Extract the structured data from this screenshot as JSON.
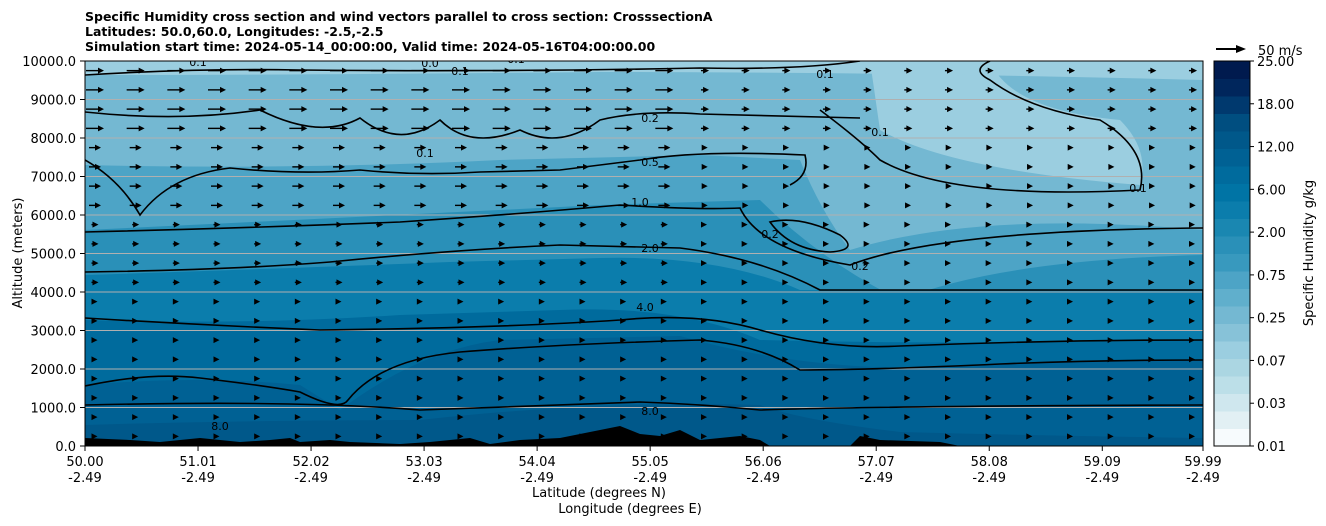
{
  "titles": {
    "line1": "Specific Humidity cross section and wind vectors parallel to cross section: CrosssectionA",
    "line2": "Latitudes: 50.0,60.0, Longitudes: -2.5,-2.5",
    "line3": "Simulation start time: 2024-05-14_00:00:00, Valid time: 2024-05-16T04:00:00.00"
  },
  "chart_data": {
    "type": "heatmap",
    "title": "Specific Humidity cross section and wind vectors parallel to cross section: CrosssectionA",
    "ylabel": "Altitude (meters)",
    "xlabel_lat": "Latitude (degrees N)",
    "xlabel_lon": "Longitude (degrees E)",
    "ylim": [
      0,
      10000
    ],
    "xlim": [
      50.0,
      59.99
    ],
    "y_ticks": [
      "0.0",
      "1000.0",
      "2000.0",
      "3000.0",
      "4000.0",
      "5000.0",
      "6000.0",
      "7000.0",
      "8000.0",
      "9000.0",
      "10000.0"
    ],
    "x_ticks": [
      {
        "lat": "50.00",
        "lon": "-2.49"
      },
      {
        "lat": "51.01",
        "lon": "-2.49"
      },
      {
        "lat": "52.02",
        "lon": "-2.49"
      },
      {
        "lat": "53.03",
        "lon": "-2.49"
      },
      {
        "lat": "54.04",
        "lon": "-2.49"
      },
      {
        "lat": "55.05",
        "lon": "-2.49"
      },
      {
        "lat": "56.06",
        "lon": "-2.49"
      },
      {
        "lat": "57.07",
        "lon": "-2.49"
      },
      {
        "lat": "58.08",
        "lon": "-2.49"
      },
      {
        "lat": "59.09",
        "lon": "-2.49"
      },
      {
        "lat": "59.99",
        "lon": "-2.49"
      }
    ],
    "grid": "horizontal",
    "colorbar": {
      "label": "Specific Humidity g/kg",
      "levels": [
        0.01,
        0.02,
        0.03,
        0.05,
        0.07,
        0.1,
        0.15,
        0.25,
        0.35,
        0.5,
        0.75,
        1.0,
        1.5,
        2.0,
        3.0,
        4.0,
        6.0,
        8.0,
        12.0,
        15.0,
        18.0,
        22.0,
        25.0
      ],
      "tick_labels": [
        "0.01",
        "0.03",
        "0.07",
        "0.25",
        "0.75",
        "2.00",
        "6.00",
        "12.00",
        "18.00",
        "25.00"
      ],
      "colors": [
        "#f7fbfd",
        "#e2f0f4",
        "#cfe7ee",
        "#bcdfe8",
        "#abd6e2",
        "#9bcee0",
        "#87c2d8",
        "#74b8d2",
        "#60afcc",
        "#4da4c6",
        "#3899be",
        "#2a90b8",
        "#1a87b1",
        "#0b7dac",
        "#0074a5",
        "#006b9d",
        "#006194",
        "#00588a",
        "#004e80",
        "#00396e",
        "#00265c",
        "#001a4e"
      ]
    },
    "contour_levels": [
      "0.0",
      "0.1",
      "0.2",
      "0.5",
      "1.0",
      "2.0",
      "4.0",
      "8.0"
    ],
    "quiver_key": {
      "value": 50,
      "label": "50 m/s"
    },
    "colors": {
      "contour": "#000000",
      "terrain": "#000000",
      "grid": "#b0b0b0"
    }
  }
}
